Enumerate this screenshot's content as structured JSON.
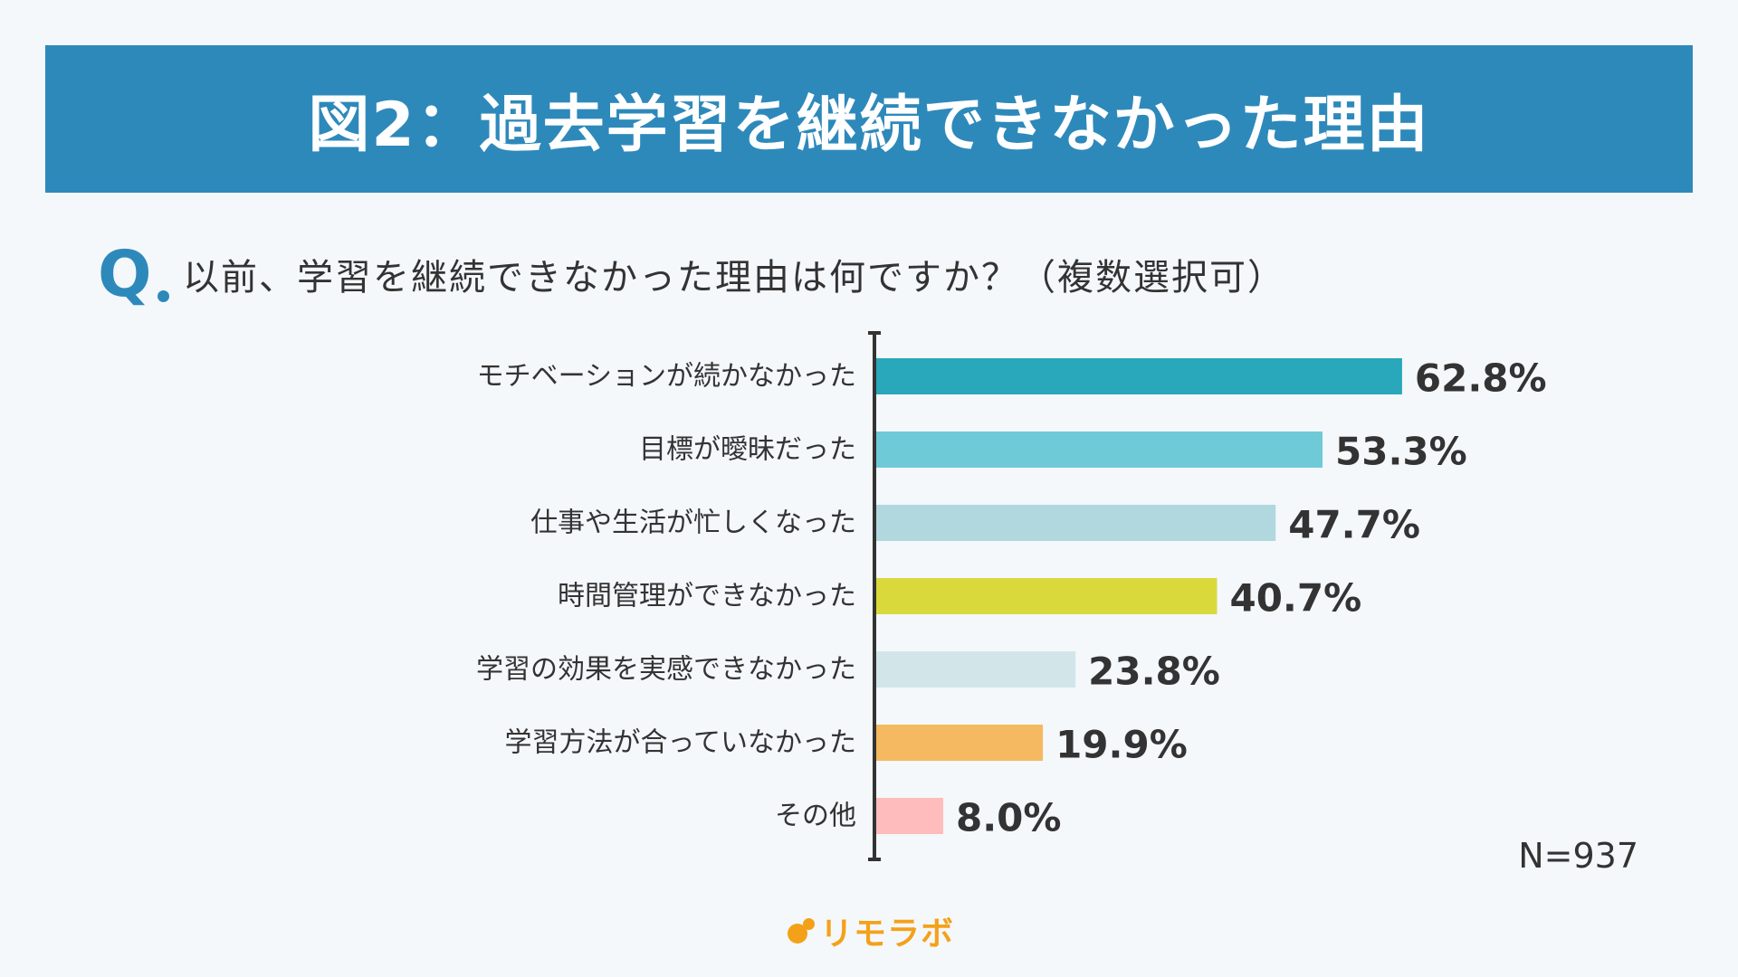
{
  "title": "図2：過去学習を継続できなかった理由",
  "question": {
    "mark": "Q",
    "text": "以前、学習を継続できなかった理由は何ですか？（複数選択可）"
  },
  "sample_size": "N=937",
  "logo": {
    "text": "リモラボ",
    "color": "#f4a11a"
  },
  "colors": {
    "banner": "#2e89bb",
    "background": "#f4f8fb",
    "axis": "#333333"
  },
  "chart_data": {
    "type": "bar",
    "orientation": "horizontal",
    "categories": [
      "モチベーションが続かなかった",
      "目標が曖昧だった",
      "仕事や生活が忙しくなった",
      "時間管理ができなかった",
      "学習の効果を実感できなかった",
      "学習方法が合っていなかった",
      "その他"
    ],
    "values": [
      62.8,
      53.3,
      47.7,
      40.7,
      23.8,
      19.9,
      8.0
    ],
    "value_labels": [
      "62.8%",
      "53.3%",
      "47.7%",
      "40.7%",
      "23.8%",
      "19.9%",
      "8.0%"
    ],
    "bar_colors": [
      "#29a7bb",
      "#6fcad8",
      "#b0d8de",
      "#d9d93c",
      "#d2e6ea",
      "#f5b961",
      "#ffbcbc"
    ],
    "unit": "%",
    "xlim": [
      0,
      100
    ],
    "grid": false,
    "legend": "none"
  }
}
